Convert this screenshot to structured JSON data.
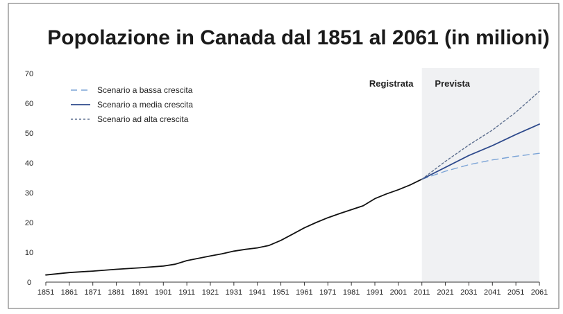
{
  "chart_data": {
    "type": "line",
    "title": "Popolazione in Canada dal 1851 al 2061 (in milioni)",
    "xlabel": "",
    "ylabel": "",
    "xlim": [
      1851,
      2061
    ],
    "ylim": [
      0,
      70
    ],
    "x_ticks": [
      "1851",
      "1861",
      "1871",
      "1881",
      "1891",
      "1901",
      "1911",
      "1921",
      "1931",
      "1941",
      "1951",
      "1961",
      "1971",
      "1981",
      "1991",
      "2001",
      "2011",
      "2021",
      "2031",
      "2041",
      "2051",
      "2061"
    ],
    "y_ticks": [
      "0",
      "10",
      "20",
      "30",
      "40",
      "50",
      "60",
      "70"
    ],
    "regions": [
      {
        "label": "Registrata",
        "from": 1851,
        "to": 2011
      },
      {
        "label": "Prevista",
        "from": 2011,
        "to": 2061,
        "fill": "#f0f1f3"
      }
    ],
    "series": [
      {
        "key": "recorded",
        "color": "#111111",
        "style": "solid",
        "points": [
          [
            1851,
            2.4
          ],
          [
            1861,
            3.2
          ],
          [
            1871,
            3.7
          ],
          [
            1881,
            4.3
          ],
          [
            1891,
            4.8
          ],
          [
            1901,
            5.4
          ],
          [
            1906,
            6.0
          ],
          [
            1911,
            7.2
          ],
          [
            1916,
            8.0
          ],
          [
            1921,
            8.8
          ],
          [
            1926,
            9.5
          ],
          [
            1931,
            10.4
          ],
          [
            1936,
            11.0
          ],
          [
            1941,
            11.5
          ],
          [
            1946,
            12.3
          ],
          [
            1951,
            14.0
          ],
          [
            1956,
            16.1
          ],
          [
            1961,
            18.2
          ],
          [
            1966,
            20.0
          ],
          [
            1971,
            21.6
          ],
          [
            1976,
            23.0
          ],
          [
            1981,
            24.3
          ],
          [
            1986,
            25.6
          ],
          [
            1991,
            28.0
          ],
          [
            1996,
            29.6
          ],
          [
            2001,
            31.0
          ],
          [
            2006,
            32.6
          ],
          [
            2011,
            34.5
          ]
        ]
      },
      {
        "key": "low",
        "name": "Scenario a bassa crescita",
        "color": "#7aa3d6",
        "style": "longdash",
        "points": [
          [
            2011,
            34.5
          ],
          [
            2021,
            37.2
          ],
          [
            2031,
            39.4
          ],
          [
            2041,
            41.0
          ],
          [
            2051,
            42.2
          ],
          [
            2061,
            43.2
          ]
        ]
      },
      {
        "key": "medium",
        "name": "Scenario a media crescita",
        "color": "#2e4a8c",
        "style": "solid",
        "points": [
          [
            2011,
            34.5
          ],
          [
            2021,
            38.5
          ],
          [
            2031,
            42.5
          ],
          [
            2041,
            45.8
          ],
          [
            2051,
            49.5
          ],
          [
            2061,
            53.0
          ]
        ]
      },
      {
        "key": "high",
        "name": "Scenario ad alta crescita",
        "color": "#5f7190",
        "style": "shortdash",
        "points": [
          [
            2011,
            34.5
          ],
          [
            2021,
            40.5
          ],
          [
            2031,
            46.0
          ],
          [
            2041,
            51.0
          ],
          [
            2051,
            57.0
          ],
          [
            2061,
            64.0
          ]
        ]
      }
    ],
    "legend": {
      "placement": "top-left",
      "entries": [
        {
          "label": "Scenario a bassa crescita",
          "series": "low"
        },
        {
          "label": "Scenario a media crescita",
          "series": "medium"
        },
        {
          "label": "Scenario ad alta crescita",
          "series": "high"
        }
      ]
    },
    "grid": false
  }
}
